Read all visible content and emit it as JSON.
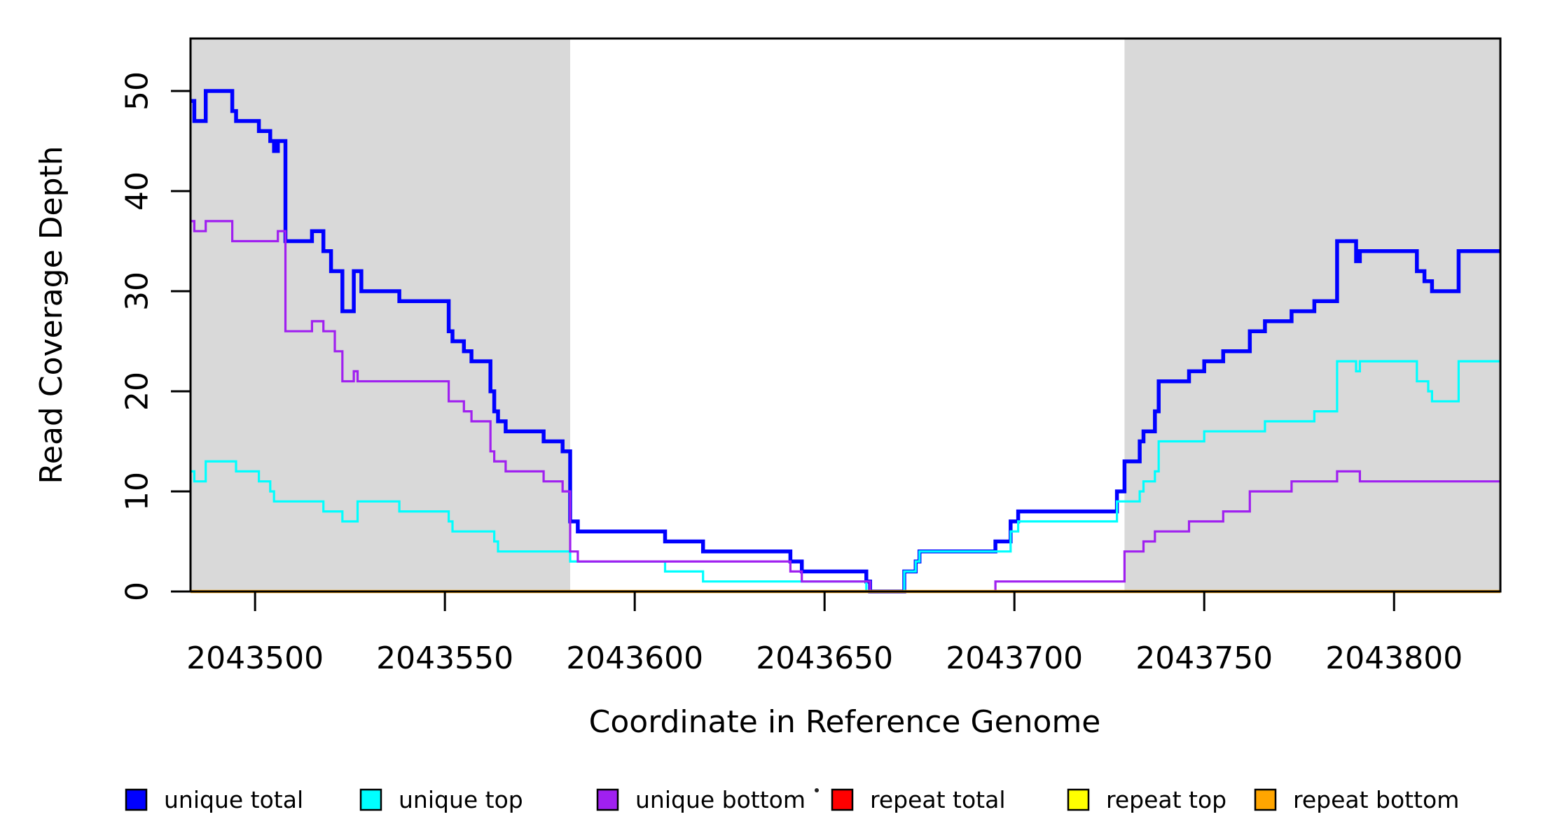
{
  "chart_data": {
    "type": "line",
    "subtype": "step",
    "title": "",
    "xlabel": "Coordinate in Reference Genome",
    "ylabel": "Read Coverage Depth",
    "xlim": [
      2043483,
      2043828
    ],
    "ylim": [
      0,
      55.2
    ],
    "x_ticks": [
      2043500,
      2043550,
      2043600,
      2043650,
      2043700,
      2043750,
      2043800
    ],
    "y_ticks": [
      0,
      10,
      20,
      30,
      40,
      50
    ],
    "grid": false,
    "background_shading": {
      "color": "#d9d9d9",
      "regions": [
        [
          2043483,
          2043583
        ],
        [
          2043729,
          2043828
        ]
      ]
    },
    "series": [
      {
        "name": "unique total",
        "color": "#0000ff",
        "line_width": 5.5,
        "points": [
          [
            2043483,
            49
          ],
          [
            2043484,
            47
          ],
          [
            2043487,
            50
          ],
          [
            2043494,
            48
          ],
          [
            2043495,
            47
          ],
          [
            2043501,
            46
          ],
          [
            2043504,
            45
          ],
          [
            2043505,
            44
          ],
          [
            2043506,
            45
          ],
          [
            2043508,
            35
          ],
          [
            2043515,
            36
          ],
          [
            2043518,
            34
          ],
          [
            2043520,
            32
          ],
          [
            2043523,
            28
          ],
          [
            2043526,
            32
          ],
          [
            2043528,
            30
          ],
          [
            2043538,
            29
          ],
          [
            2043551,
            26
          ],
          [
            2043552,
            25
          ],
          [
            2043555,
            24
          ],
          [
            2043557,
            23
          ],
          [
            2043562,
            20
          ],
          [
            2043563,
            18
          ],
          [
            2043564,
            17
          ],
          [
            2043566,
            16
          ],
          [
            2043576,
            15
          ],
          [
            2043581,
            14
          ],
          [
            2043583,
            7
          ],
          [
            2043585,
            6
          ],
          [
            2043608,
            5
          ],
          [
            2043618,
            4
          ],
          [
            2043641,
            3
          ],
          [
            2043644,
            2
          ],
          [
            2043661,
            1
          ],
          [
            2043662,
            0
          ],
          [
            2043671,
            2
          ],
          [
            2043674,
            3
          ],
          [
            2043675,
            4
          ],
          [
            2043695,
            5
          ],
          [
            2043699,
            7
          ],
          [
            2043701,
            8
          ],
          [
            2043727,
            10
          ],
          [
            2043729,
            13
          ],
          [
            2043733,
            15
          ],
          [
            2043734,
            16
          ],
          [
            2043737,
            18
          ],
          [
            2043738,
            21
          ],
          [
            2043746,
            22
          ],
          [
            2043750,
            23
          ],
          [
            2043755,
            24
          ],
          [
            2043762,
            26
          ],
          [
            2043766,
            27
          ],
          [
            2043773,
            28
          ],
          [
            2043779,
            29
          ],
          [
            2043785,
            35
          ],
          [
            2043790,
            33
          ],
          [
            2043791,
            34
          ],
          [
            2043806,
            32
          ],
          [
            2043808,
            31
          ],
          [
            2043810,
            30
          ],
          [
            2043817,
            34
          ]
        ]
      },
      {
        "name": "unique top",
        "color": "#00ffff",
        "line_width": 3.2,
        "points": [
          [
            2043483,
            12
          ],
          [
            2043484,
            11
          ],
          [
            2043487,
            13
          ],
          [
            2043495,
            12
          ],
          [
            2043501,
            11
          ],
          [
            2043504,
            10
          ],
          [
            2043505,
            9
          ],
          [
            2043518,
            8
          ],
          [
            2043523,
            7
          ],
          [
            2043527,
            9
          ],
          [
            2043538,
            8
          ],
          [
            2043551,
            7
          ],
          [
            2043552,
            6
          ],
          [
            2043563,
            5
          ],
          [
            2043564,
            4
          ],
          [
            2043583,
            3
          ],
          [
            2043608,
            2
          ],
          [
            2043618,
            1
          ],
          [
            2043661,
            0
          ],
          [
            2043671,
            2
          ],
          [
            2043674,
            3
          ],
          [
            2043675,
            4
          ],
          [
            2043699,
            6
          ],
          [
            2043701,
            7
          ],
          [
            2043727,
            9
          ],
          [
            2043733,
            10
          ],
          [
            2043734,
            11
          ],
          [
            2043737,
            12
          ],
          [
            2043738,
            15
          ],
          [
            2043750,
            16
          ],
          [
            2043766,
            17
          ],
          [
            2043779,
            18
          ],
          [
            2043785,
            23
          ],
          [
            2043790,
            22
          ],
          [
            2043791,
            23
          ],
          [
            2043806,
            21
          ],
          [
            2043809,
            20
          ],
          [
            2043810,
            19
          ],
          [
            2043817,
            23
          ]
        ]
      },
      {
        "name": "unique bottom",
        "color": "#a020f0",
        "line_width": 3.2,
        "points": [
          [
            2043483,
            37
          ],
          [
            2043484,
            36
          ],
          [
            2043487,
            37
          ],
          [
            2043494,
            35
          ],
          [
            2043506,
            36
          ],
          [
            2043508,
            26
          ],
          [
            2043515,
            27
          ],
          [
            2043518,
            26
          ],
          [
            2043521,
            24
          ],
          [
            2043523,
            21
          ],
          [
            2043526,
            22
          ],
          [
            2043527,
            21
          ],
          [
            2043551,
            19
          ],
          [
            2043555,
            18
          ],
          [
            2043557,
            17
          ],
          [
            2043562,
            14
          ],
          [
            2043563,
            13
          ],
          [
            2043566,
            12
          ],
          [
            2043576,
            11
          ],
          [
            2043581,
            10
          ],
          [
            2043583,
            4
          ],
          [
            2043585,
            3
          ],
          [
            2043641,
            2
          ],
          [
            2043644,
            1
          ],
          [
            2043662,
            0
          ],
          [
            2043695,
            1
          ],
          [
            2043729,
            4
          ],
          [
            2043734,
            5
          ],
          [
            2043737,
            6
          ],
          [
            2043746,
            7
          ],
          [
            2043755,
            8
          ],
          [
            2043762,
            10
          ],
          [
            2043773,
            11
          ],
          [
            2043785,
            12
          ],
          [
            2043791,
            11
          ]
        ]
      },
      {
        "name": "repeat total",
        "color": "#ff0000",
        "line_width": 3.2,
        "points": [
          [
            2043483,
            0
          ]
        ]
      },
      {
        "name": "repeat top",
        "color": "#ffff00",
        "line_width": 3.2,
        "points": [
          [
            2043483,
            0
          ]
        ]
      },
      {
        "name": "repeat bottom",
        "color": "#ffa500",
        "line_width": 4.5,
        "points": [
          [
            2043483,
            0
          ]
        ]
      }
    ],
    "legend": {
      "position": "bottom",
      "entries": [
        {
          "label": "unique total",
          "color": "#0000ff"
        },
        {
          "label": "unique top",
          "color": "#00ffff"
        },
        {
          "label": "unique bottom",
          "color": "#a020f0"
        },
        {
          "label": "repeat total",
          "color": "#ff0000"
        },
        {
          "label": "repeat top",
          "color": "#ffff00"
        },
        {
          "label": "repeat bottom",
          "color": "#ffa500"
        }
      ]
    }
  }
}
